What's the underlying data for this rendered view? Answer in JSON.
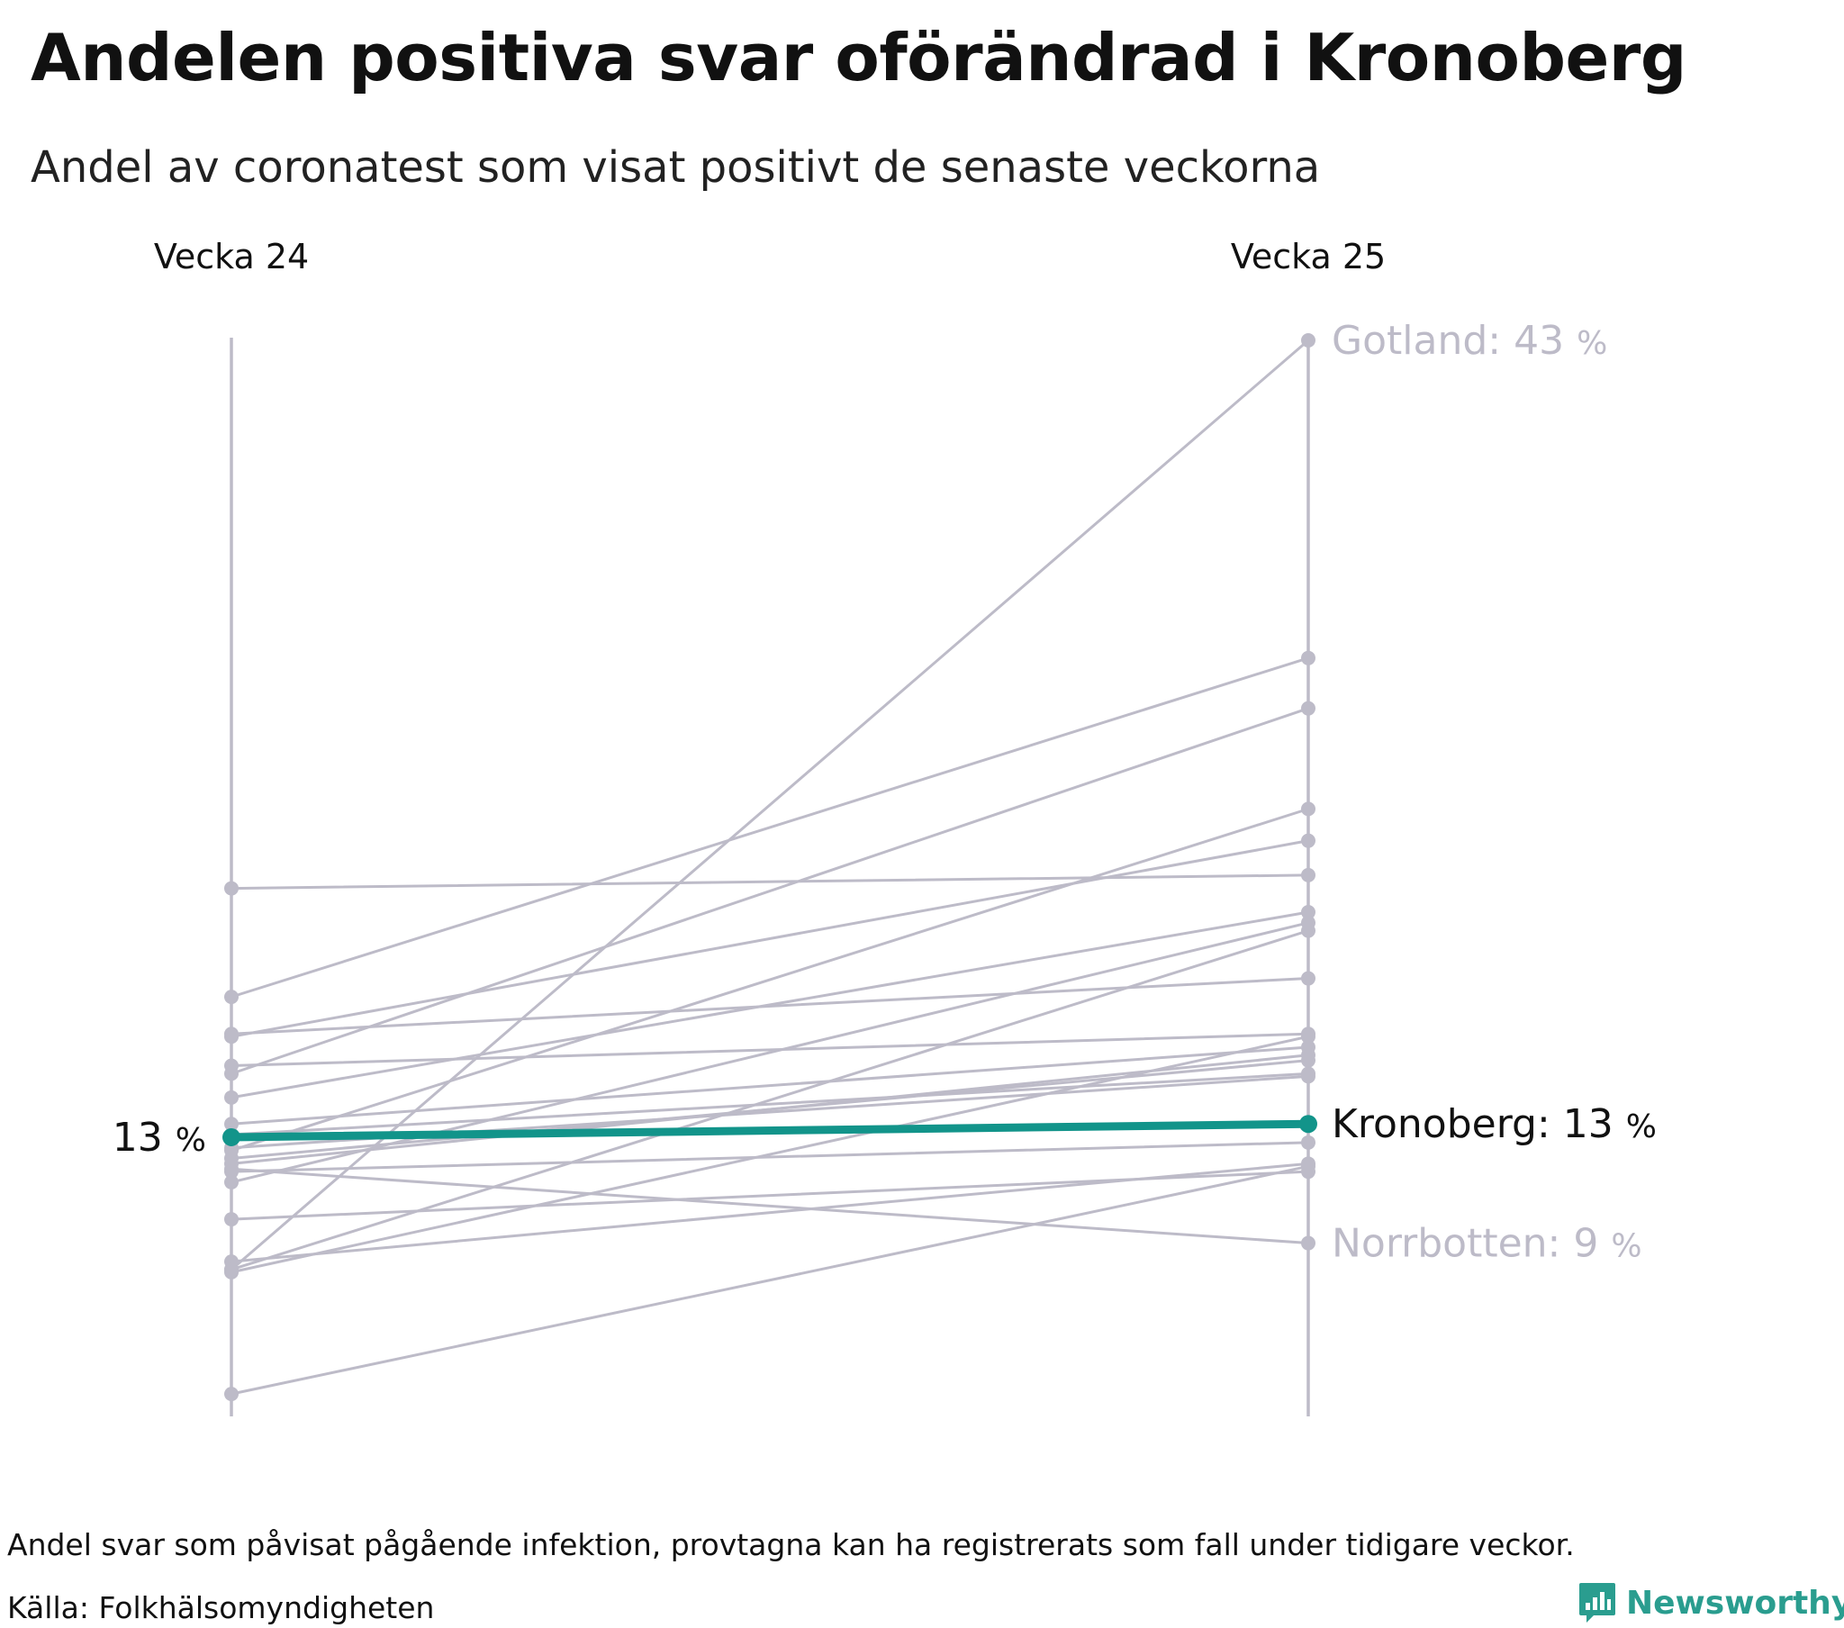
{
  "header": {
    "title": "Andelen positiva svar oförändrad i Kronoberg",
    "subtitle": "Andel av coronatest som visat positivt de senaste veckorna"
  },
  "footer": {
    "note": "Andel svar som påvisat pågående infektion, provtagna kan ha registrerats som fall under tidigare veckor.",
    "source": "Källa: Folkhälsomyndigheten",
    "brand": "Newsworthy"
  },
  "colors": {
    "highlight": "#12948a",
    "muted": "#bdbbc8",
    "label_muted": "#bdbbc8",
    "brand": "#2a9d8f"
  },
  "chart_data": {
    "type": "line",
    "subtype": "slope",
    "categories": [
      "Vecka 24",
      "Vecka 25"
    ],
    "ylim": [
      0,
      43
    ],
    "grid": false,
    "legend": "none",
    "highlight": "Kronoberg",
    "highlight_start_label": "13 %",
    "series": [
      {
        "name": "Kronoberg",
        "values": [
          12.9,
          13.4
        ],
        "label": "Kronoberg: 13 %",
        "highlight": true
      },
      {
        "name": "Gotland",
        "values": [
          7.9,
          43.0
        ],
        "label": "Gotland: 43 %"
      },
      {
        "name": "Norrbotten",
        "values": [
          11.7,
          8.9
        ],
        "label": "Norrbotten: 9 %"
      },
      {
        "name": "",
        "values": [
          22.3,
          22.8
        ]
      },
      {
        "name": "",
        "values": [
          18.2,
          31.0
        ]
      },
      {
        "name": "",
        "values": [
          16.7,
          24.1
        ]
      },
      {
        "name": "",
        "values": [
          16.8,
          18.9
        ]
      },
      {
        "name": "",
        "values": [
          15.6,
          16.8
        ]
      },
      {
        "name": "",
        "values": [
          15.3,
          29.1
        ]
      },
      {
        "name": "",
        "values": [
          14.4,
          21.4
        ]
      },
      {
        "name": "",
        "values": [
          13.0,
          15.3
        ]
      },
      {
        "name": "",
        "values": [
          13.4,
          16.3
        ]
      },
      {
        "name": "",
        "values": [
          12.1,
          15.8
        ]
      },
      {
        "name": "",
        "values": [
          11.9,
          16.0
        ]
      },
      {
        "name": "",
        "values": [
          11.6,
          12.7
        ]
      },
      {
        "name": "",
        "values": [
          11.2,
          21.0
        ]
      },
      {
        "name": "",
        "values": [
          9.8,
          11.6
        ]
      },
      {
        "name": "",
        "values": [
          8.2,
          11.9
        ]
      },
      {
        "name": "",
        "values": [
          7.8,
          16.7
        ]
      },
      {
        "name": "",
        "values": [
          3.2,
          11.8
        ]
      },
      {
        "name": "",
        "values": [
          12.4,
          25.3
        ]
      },
      {
        "name": "",
        "values": [
          7.9,
          20.7
        ]
      },
      {
        "name": "",
        "values": [
          12.5,
          15.2
        ]
      }
    ]
  }
}
